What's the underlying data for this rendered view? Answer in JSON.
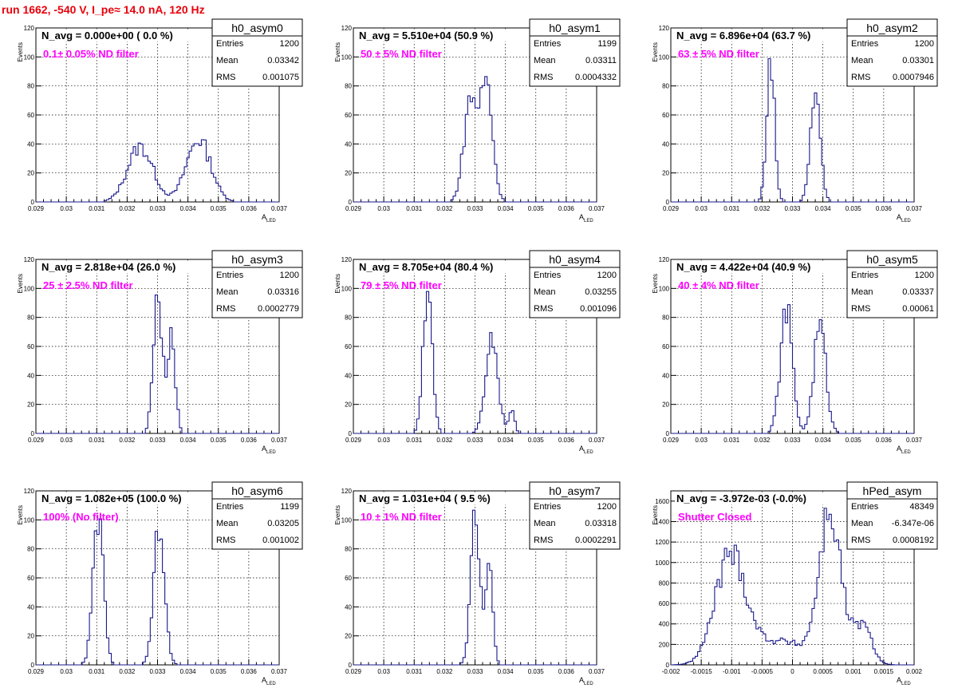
{
  "figure_title": "run 1662,  -540 V, I_pe≈ 14.0 nA, 120 Hz",
  "colors": {
    "hist_line": "#1a1a8c",
    "title_red": "#e8000b",
    "annot_magenta": "#ff00ff",
    "grid": "#000000"
  },
  "stats_labels": {
    "entries": "Entries",
    "mean": "Mean",
    "rms": "RMS"
  },
  "chart_data": [
    {
      "type": "histogram",
      "name": "h0_asym0",
      "title": "N_avg = 0.000e+00 ( 0.0 %)",
      "annotation": "0.1± 0.05% ND filter",
      "xlabel": "A",
      "xlabel_sub": "LED",
      "ylabel": "Events",
      "xlim": [
        0.029,
        0.037
      ],
      "ylim": [
        0,
        120
      ],
      "xticks": [
        "0.029",
        "0.03",
        "0.031",
        "0.032",
        "0.033",
        "0.034",
        "0.035",
        "0.036",
        "0.037"
      ],
      "yticks": [
        "0",
        "20",
        "40",
        "60",
        "80",
        "100",
        "120"
      ],
      "stats": {
        "entries": "1200",
        "mean": "0.03342",
        "rms": "0.001075"
      },
      "peaks": [
        {
          "mu": 0.03243,
          "sigma": 0.00042,
          "amp": 38
        },
        {
          "mu": 0.03435,
          "sigma": 0.0004,
          "amp": 43
        }
      ],
      "grid": true
    },
    {
      "type": "histogram",
      "name": "h0_asym1",
      "title": "N_avg = 5.510e+04 (50.9 %)",
      "annotation": "50 ± 5% ND filter",
      "xlabel": "A",
      "xlabel_sub": "LED",
      "ylabel": "Events",
      "xlim": [
        0.029,
        0.037
      ],
      "ylim": [
        0,
        120
      ],
      "xticks": [
        "0.029",
        "0.03",
        "0.031",
        "0.032",
        "0.033",
        "0.034",
        "0.035",
        "0.036",
        "0.037"
      ],
      "yticks": [
        "0",
        "20",
        "40",
        "60",
        "80",
        "100",
        "120"
      ],
      "stats": {
        "entries": "1199",
        "mean": "0.03311",
        "rms": "0.0004332"
      },
      "peaks": [
        {
          "mu": 0.03285,
          "sigma": 0.00022,
          "amp": 70
        },
        {
          "mu": 0.03338,
          "sigma": 0.0002,
          "amp": 80
        }
      ],
      "grid": true
    },
    {
      "type": "histogram",
      "name": "h0_asym2",
      "title": "N_avg = 6.896e+04 (63.7 %)",
      "annotation": "63 ± 5% ND filter",
      "xlabel": "A",
      "xlabel_sub": "LED",
      "ylabel": "Events",
      "xlim": [
        0.029,
        0.037
      ],
      "ylim": [
        0,
        120
      ],
      "xticks": [
        "0.029",
        "0.03",
        "0.031",
        "0.032",
        "0.033",
        "0.034",
        "0.035",
        "0.036",
        "0.037"
      ],
      "yticks": [
        "0",
        "20",
        "40",
        "60",
        "80",
        "100",
        "120"
      ],
      "stats": {
        "entries": "1200",
        "mean": "0.03301",
        "rms": "0.0007946"
      },
      "peaks": [
        {
          "mu": 0.03228,
          "sigma": 0.00013,
          "amp": 98
        },
        {
          "mu": 0.03375,
          "sigma": 0.00016,
          "amp": 80
        }
      ],
      "grid": true
    },
    {
      "type": "histogram",
      "name": "h0_asym3",
      "title": "N_avg = 2.818e+04 (26.0 %)",
      "annotation": "25 ± 2.5% ND filter",
      "xlabel": "A",
      "xlabel_sub": "LED",
      "ylabel": "Events",
      "xlim": [
        0.029,
        0.037
      ],
      "ylim": [
        0,
        120
      ],
      "xticks": [
        "0.029",
        "0.03",
        "0.031",
        "0.032",
        "0.033",
        "0.034",
        "0.035",
        "0.036",
        "0.037"
      ],
      "yticks": [
        "0",
        "20",
        "40",
        "60",
        "80",
        "100",
        "120"
      ],
      "stats": {
        "entries": "1200",
        "mean": "0.03316",
        "rms": "0.0002779"
      },
      "peaks": [
        {
          "mu": 0.033,
          "sigma": 0.00014,
          "amp": 100
        },
        {
          "mu": 0.03345,
          "sigma": 0.00013,
          "amp": 70
        }
      ],
      "grid": true
    },
    {
      "type": "histogram",
      "name": "h0_asym4",
      "title": "N_avg = 8.705e+04 (80.4 %)",
      "annotation": "79 ± 5% ND filter",
      "xlabel": "A",
      "xlabel_sub": "LED",
      "ylabel": "Events",
      "xlim": [
        0.029,
        0.037
      ],
      "ylim": [
        0,
        120
      ],
      "xticks": [
        "0.029",
        "0.03",
        "0.031",
        "0.032",
        "0.033",
        "0.034",
        "0.035",
        "0.036",
        "0.037"
      ],
      "yticks": [
        "0",
        "20",
        "40",
        "60",
        "80",
        "100",
        "120"
      ],
      "stats": {
        "entries": "1200",
        "mean": "0.03255",
        "rms": "0.001096"
      },
      "peaks": [
        {
          "mu": 0.03145,
          "sigma": 0.00015,
          "amp": 100
        },
        {
          "mu": 0.03355,
          "sigma": 0.0002,
          "amp": 68
        },
        {
          "mu": 0.0342,
          "sigma": 0.0001,
          "amp": 15
        }
      ],
      "grid": true
    },
    {
      "type": "histogram",
      "name": "h0_asym5",
      "title": "N_avg = 4.422e+04 (40.9 %)",
      "annotation": "40 ± 4% ND filter",
      "xlabel": "A",
      "xlabel_sub": "LED",
      "ylabel": "Events",
      "xlim": [
        0.029,
        0.037
      ],
      "ylim": [
        0,
        120
      ],
      "xticks": [
        "0.029",
        "0.03",
        "0.031",
        "0.032",
        "0.033",
        "0.034",
        "0.035",
        "0.036",
        "0.037"
      ],
      "yticks": [
        "0",
        "20",
        "40",
        "60",
        "80",
        "100",
        "120"
      ],
      "stats": {
        "entries": "1200",
        "mean": "0.03337",
        "rms": "0.00061"
      },
      "peaks": [
        {
          "mu": 0.0328,
          "sigma": 0.0002,
          "amp": 84
        },
        {
          "mu": 0.0339,
          "sigma": 0.0002,
          "amp": 74
        }
      ],
      "grid": true
    },
    {
      "type": "histogram",
      "name": "h0_asym6",
      "title": "N_avg = 1.082e+05 (100.0 %)",
      "annotation": "100% (No filter)",
      "xlabel": "A",
      "xlabel_sub": "LED",
      "ylabel": "Events",
      "xlim": [
        0.029,
        0.037
      ],
      "ylim": [
        0,
        120
      ],
      "xticks": [
        "0.029",
        "0.03",
        "0.031",
        "0.032",
        "0.033",
        "0.034",
        "0.035",
        "0.036",
        "0.037"
      ],
      "yticks": [
        "0",
        "20",
        "40",
        "60",
        "80",
        "100",
        "120"
      ],
      "stats": {
        "entries": "1199",
        "mean": "0.03205",
        "rms": "0.001002"
      },
      "peaks": [
        {
          "mu": 0.03105,
          "sigma": 0.00017,
          "amp": 100
        },
        {
          "mu": 0.03305,
          "sigma": 0.00018,
          "amp": 92
        }
      ],
      "grid": true
    },
    {
      "type": "histogram",
      "name": "h0_asym7",
      "title": "N_avg = 1.031e+04 ( 9.5 %)",
      "annotation": "10 ± 1% ND filter",
      "xlabel": "A",
      "xlabel_sub": "LED",
      "ylabel": "Events",
      "xlim": [
        0.029,
        0.037
      ],
      "ylim": [
        0,
        120
      ],
      "xticks": [
        "0.029",
        "0.03",
        "0.031",
        "0.032",
        "0.033",
        "0.034",
        "0.035",
        "0.036",
        "0.037"
      ],
      "yticks": [
        "0",
        "20",
        "40",
        "60",
        "80",
        "100",
        "120"
      ],
      "stats": {
        "entries": "1200",
        "mean": "0.03318",
        "rms": "0.0002291"
      },
      "peaks": [
        {
          "mu": 0.033,
          "sigma": 0.00015,
          "amp": 100
        },
        {
          "mu": 0.03345,
          "sigma": 0.00012,
          "amp": 72
        }
      ],
      "grid": true
    },
    {
      "type": "histogram",
      "name": "hPed_asym",
      "title": "N_avg = -3.972e-03 (-0.0%)",
      "annotation": "Shutter Closed",
      "xlabel": "A",
      "xlabel_sub": "LED",
      "ylabel": "Events",
      "xlim": [
        -0.002,
        0.002
      ],
      "ylim": [
        0,
        1700
      ],
      "xticks": [
        "-0.002",
        "-0.0015",
        "-0.001",
        "-0.0005",
        "0",
        "0.0005",
        "0.001",
        "0.0015",
        "0.002"
      ],
      "yticks": [
        "0",
        "200",
        "400",
        "600",
        "800",
        "1000",
        "1200",
        "1400",
        "1600"
      ],
      "stats": {
        "entries": "48349",
        "mean": "-6.347e-06",
        "rms": "0.0008192"
      },
      "peaks": [
        {
          "mu": -0.00102,
          "sigma": 0.00025,
          "amp": 1050
        },
        {
          "mu": 0.00062,
          "sigma": 0.00018,
          "amp": 1450
        },
        {
          "mu": 0.00115,
          "sigma": 0.00015,
          "amp": 380
        },
        {
          "mu": -0.0002,
          "sigma": 0.00045,
          "amp": 230
        }
      ],
      "grid": true
    }
  ]
}
